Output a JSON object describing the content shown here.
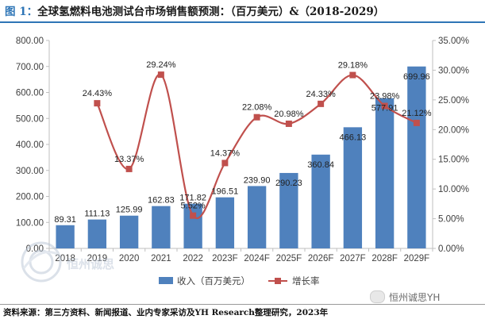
{
  "header": {
    "figure_label": "图 1：",
    "title": "全球氢燃料电池测试台市场销售额预测：（百万美元）&（2018-2029）"
  },
  "chart_data": {
    "type": "bar+line",
    "categories": [
      "2018",
      "2019",
      "2020",
      "2021",
      "2022",
      "2023F",
      "2024F",
      "2025F",
      "2026F",
      "2027F",
      "2028F",
      "2029F"
    ],
    "series": [
      {
        "name": "收入（百万美元）",
        "type": "bar",
        "axis": "left",
        "values": [
          89.31,
          111.13,
          125.99,
          162.83,
          171.82,
          196.51,
          239.9,
          290.23,
          360.84,
          466.13,
          577.91,
          699.96
        ],
        "labels": [
          "89.31",
          "111.13",
          "125.99",
          "162.83",
          "171.82",
          "196.51",
          "239.90",
          "290.23",
          "360.84",
          "466.13",
          "577.91",
          "699.96"
        ]
      },
      {
        "name": "增长率",
        "type": "line",
        "axis": "right",
        "values": [
          null,
          24.43,
          13.37,
          29.24,
          5.52,
          14.37,
          22.08,
          20.98,
          24.33,
          29.18,
          23.98,
          21.12
        ],
        "labels": [
          "",
          "24.43%",
          "13.37%",
          "29.24%",
          "5.52%",
          "14.37%",
          "22.08%",
          "20.98%",
          "24.33%",
          "29.18%",
          "23.98%",
          "21.12%"
        ]
      }
    ],
    "y_left": {
      "min": 0,
      "max": 800,
      "step": 100,
      "tick_labels": [
        "0.00",
        "100.00",
        "200.00",
        "300.00",
        "400.00",
        "500.00",
        "600.00",
        "700.00",
        "800.00"
      ]
    },
    "y_right": {
      "min": 0,
      "max": 35,
      "step": 5,
      "tick_labels": [
        "0.00%",
        "5.00%",
        "10.00%",
        "15.00%",
        "20.00%",
        "25.00%",
        "30.00%",
        "35.00%"
      ]
    },
    "grid": false,
    "legend": "bottom-center",
    "colors": {
      "bar": "#4f81bd",
      "line": "#c0504d",
      "axis": "#bfbfbf",
      "text": "#404040"
    }
  },
  "watermark": {
    "left_text": "恒州诚思",
    "right_text": "恒州诚思YH"
  },
  "footer": {
    "source": "资料来源：第三方资料、新闻报道、业内专家采访及YH Research整理研究，2023年"
  }
}
